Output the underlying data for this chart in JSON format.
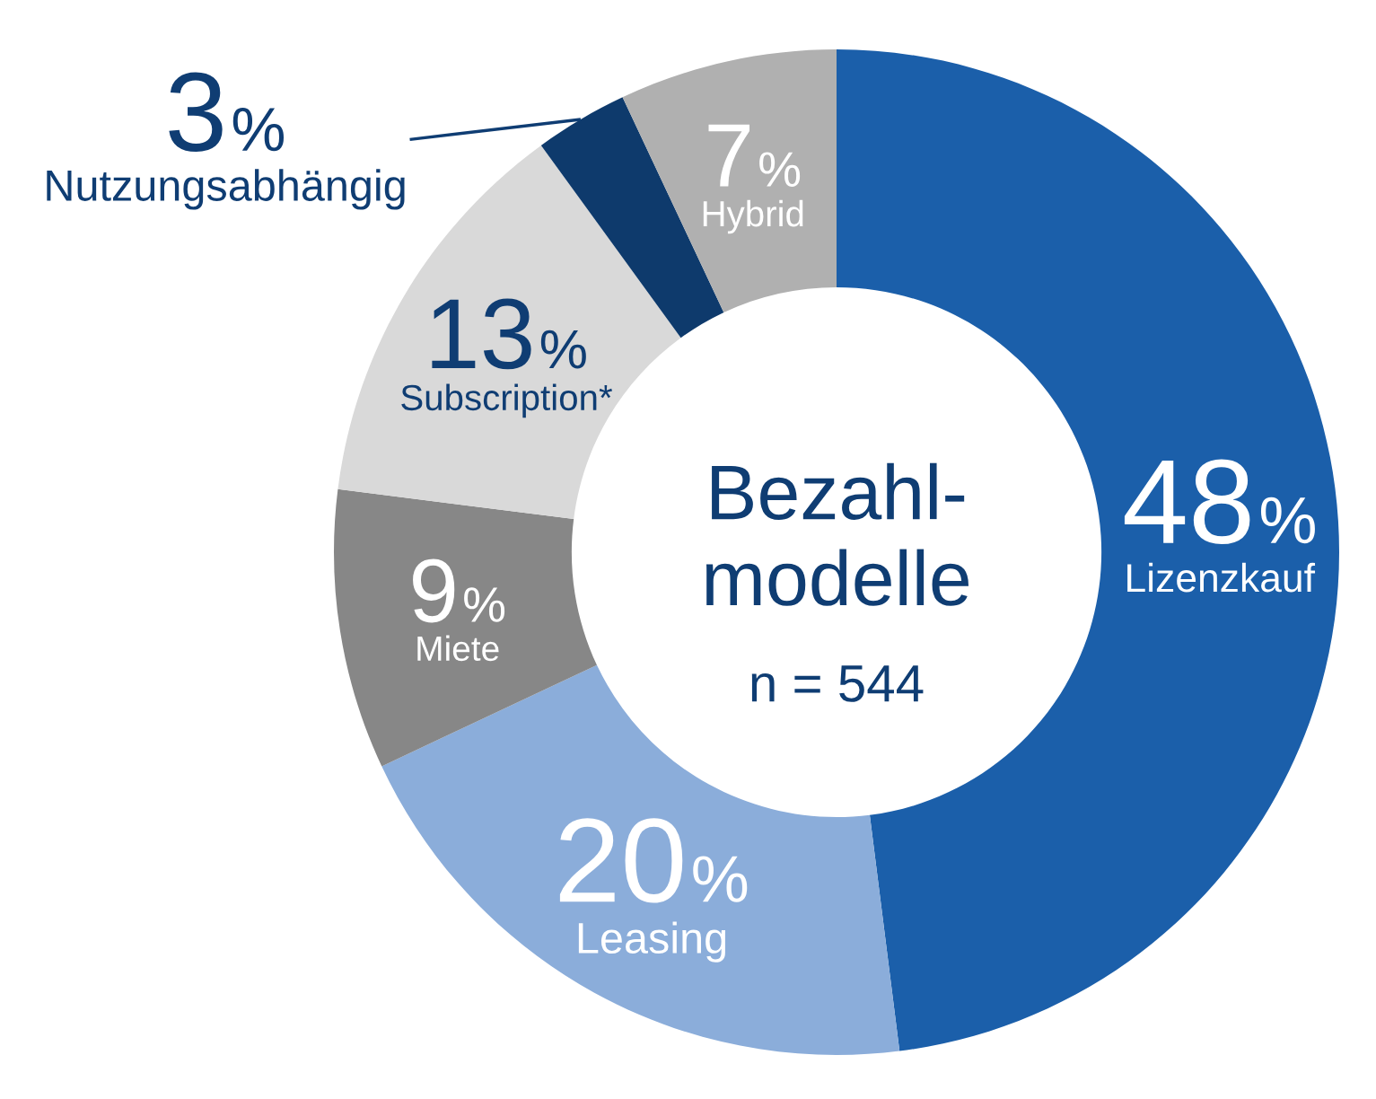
{
  "chart_data": {
    "type": "donut",
    "title": "Bezahl-\nmodelle",
    "subtitle": "n = 544",
    "categories": [
      "Lizenzkauf",
      "Leasing",
      "Miete",
      "Subscription*",
      "Nutzungsabhängig",
      "Hybrid"
    ],
    "values": [
      48,
      20,
      9,
      13,
      3,
      7
    ],
    "colors": [
      "#1b5faa",
      "#8badda",
      "#878787",
      "#d9d9d9",
      "#0e3a6c",
      "#b0b0b0"
    ],
    "value_labels": [
      "48%",
      "20%",
      "9%",
      "13%",
      "3%",
      "7%"
    ]
  }
}
